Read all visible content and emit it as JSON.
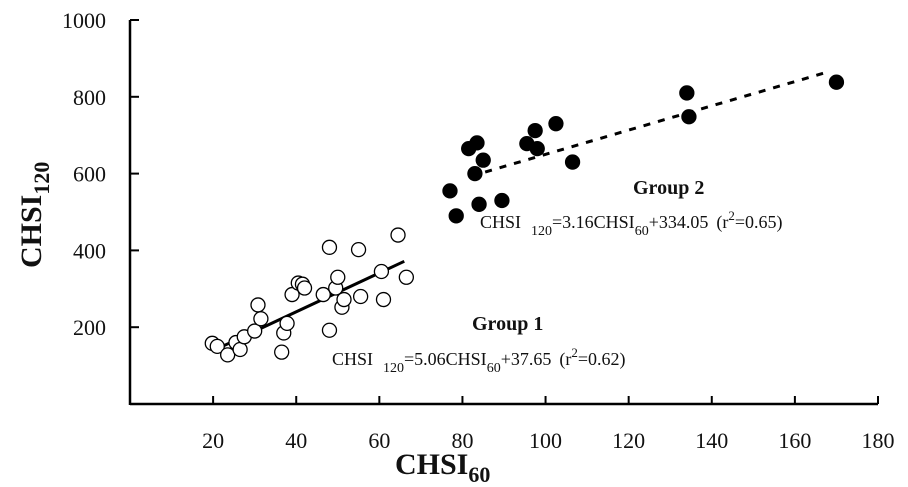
{
  "chart_data": {
    "type": "scatter",
    "xlabel": "CHSI",
    "xlabel_sub": "60",
    "ylabel": "CHSI",
    "ylabel_sub": "120",
    "xlim": [
      0,
      180
    ],
    "ylim": [
      0,
      1000
    ],
    "xticks": [
      20,
      40,
      60,
      80,
      100,
      120,
      140,
      160,
      180
    ],
    "yticks": [
      200,
      400,
      600,
      800,
      1000
    ],
    "grid": false,
    "groups": [
      {
        "name": "Group 1",
        "marker": "open-circle",
        "fit_style": "solid",
        "fit_line": {
          "slope": 5.06,
          "intercept": 37.65,
          "x_range": [
            20,
            66
          ]
        },
        "equation": {
          "lhs": "CHSI",
          "lhs_sub": "120",
          "mid": "=5.06CHSI",
          "mid_sub": "60",
          "tail": "+37.65",
          "r_open": "(r",
          "r_sup": "2",
          "r_close": "=0.62)"
        },
        "points": [
          {
            "x": 19.8,
            "y": 158
          },
          {
            "x": 21,
            "y": 150
          },
          {
            "x": 23.5,
            "y": 128
          },
          {
            "x": 25.5,
            "y": 160
          },
          {
            "x": 26.5,
            "y": 142
          },
          {
            "x": 27.5,
            "y": 175
          },
          {
            "x": 30,
            "y": 190
          },
          {
            "x": 30.8,
            "y": 258
          },
          {
            "x": 31.5,
            "y": 222
          },
          {
            "x": 36.5,
            "y": 135
          },
          {
            "x": 37,
            "y": 185
          },
          {
            "x": 37.8,
            "y": 210
          },
          {
            "x": 39,
            "y": 285
          },
          {
            "x": 40.5,
            "y": 315
          },
          {
            "x": 41.5,
            "y": 312
          },
          {
            "x": 42,
            "y": 302
          },
          {
            "x": 46.5,
            "y": 285
          },
          {
            "x": 48,
            "y": 408
          },
          {
            "x": 48,
            "y": 192
          },
          {
            "x": 49.5,
            "y": 302
          },
          {
            "x": 50,
            "y": 330
          },
          {
            "x": 51,
            "y": 252
          },
          {
            "x": 51.5,
            "y": 272
          },
          {
            "x": 55,
            "y": 402
          },
          {
            "x": 55.5,
            "y": 280
          },
          {
            "x": 60.5,
            "y": 345
          },
          {
            "x": 61,
            "y": 272
          },
          {
            "x": 64.5,
            "y": 440
          },
          {
            "x": 66.5,
            "y": 330
          }
        ]
      },
      {
        "name": "Group 2",
        "marker": "filled-circle",
        "fit_style": "dashed",
        "fit_line": {
          "slope": 3.16,
          "intercept": 334.05,
          "x_range": [
            82,
            168
          ]
        },
        "equation": {
          "lhs": "CHSI",
          "lhs_sub": "120",
          "mid": "=3.16CHSI",
          "mid_sub": "60",
          "tail": "+334.05",
          "r_open": "(r",
          "r_sup": "2",
          "r_close": "=0.65)"
        },
        "points": [
          {
            "x": 77,
            "y": 555
          },
          {
            "x": 78.5,
            "y": 490
          },
          {
            "x": 81.5,
            "y": 665
          },
          {
            "x": 83,
            "y": 600
          },
          {
            "x": 83.5,
            "y": 680
          },
          {
            "x": 84,
            "y": 520
          },
          {
            "x": 85,
            "y": 635
          },
          {
            "x": 89.5,
            "y": 530
          },
          {
            "x": 95.5,
            "y": 678
          },
          {
            "x": 97.5,
            "y": 712
          },
          {
            "x": 98,
            "y": 665
          },
          {
            "x": 102.5,
            "y": 730
          },
          {
            "x": 106.5,
            "y": 630
          },
          {
            "x": 134,
            "y": 810
          },
          {
            "x": 134.5,
            "y": 748
          },
          {
            "x": 170,
            "y": 838
          }
        ]
      }
    ]
  }
}
